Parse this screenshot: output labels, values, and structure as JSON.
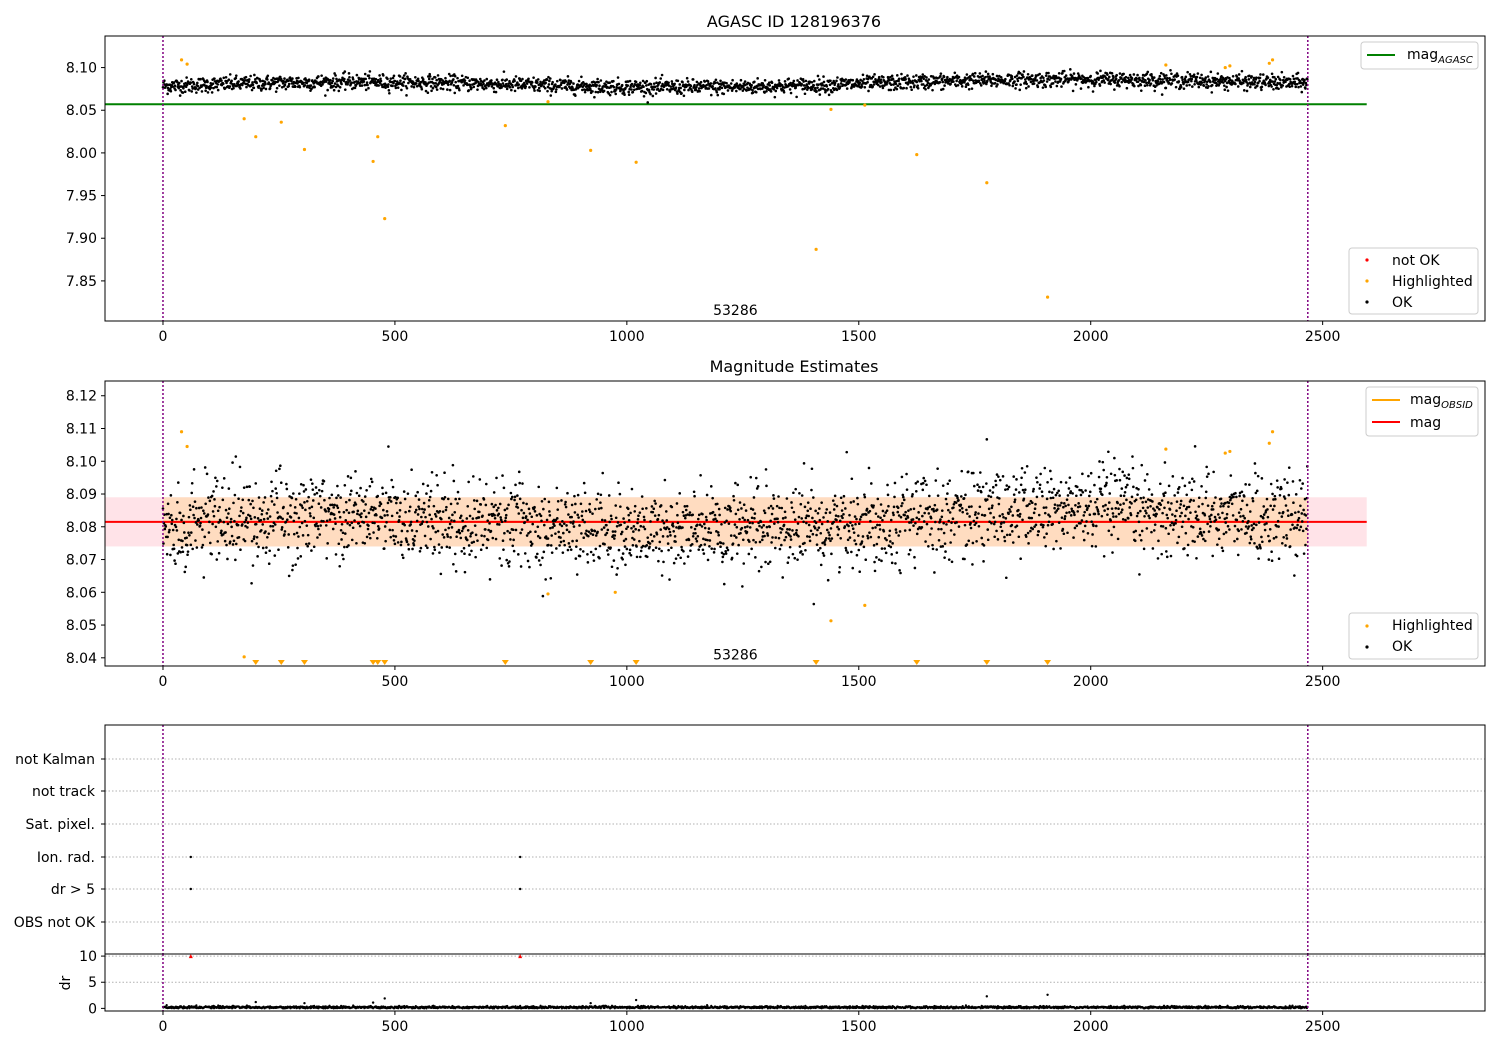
{
  "chart_data": [
    {
      "type": "scatter",
      "title": "AGASC ID 128196376",
      "xlim": [
        -125,
        2850
      ],
      "ylim": [
        7.803,
        8.137
      ],
      "xticks": [
        0,
        500,
        1000,
        1500,
        2000,
        2500
      ],
      "yticks": [
        7.85,
        7.9,
        7.95,
        8.0,
        8.05,
        8.1
      ],
      "ytick_labels": [
        "7.85",
        "7.90",
        "7.95",
        "8.00",
        "8.05",
        "8.10"
      ],
      "vlines": [
        0,
        2468
      ],
      "annotation": {
        "text": "53286",
        "x": 1234,
        "y": 7.81
      },
      "mag_agasc": {
        "label": "mag_AGASC",
        "label_main": "mag",
        "label_sub": "AGASC",
        "value": 8.057,
        "x_range": [
          -125,
          2595
        ],
        "color": "#008000"
      },
      "ok_trend": {
        "n": 2468,
        "base": 8.081,
        "amplitude": 0.006
      },
      "highlighted_points": [
        {
          "x": 40,
          "y": 8.109
        },
        {
          "x": 52,
          "y": 8.104
        },
        {
          "x": 175,
          "y": 8.04
        },
        {
          "x": 200,
          "y": 8.019
        },
        {
          "x": 255,
          "y": 8.036
        },
        {
          "x": 305,
          "y": 8.004
        },
        {
          "x": 453,
          "y": 7.99
        },
        {
          "x": 463,
          "y": 8.019
        },
        {
          "x": 478,
          "y": 7.923
        },
        {
          "x": 738,
          "y": 8.032
        },
        {
          "x": 830,
          "y": 8.06
        },
        {
          "x": 922,
          "y": 8.003
        },
        {
          "x": 1020,
          "y": 7.989
        },
        {
          "x": 1408,
          "y": 7.887
        },
        {
          "x": 1440,
          "y": 8.051
        },
        {
          "x": 1513,
          "y": 8.056
        },
        {
          "x": 1625,
          "y": 7.998
        },
        {
          "x": 1776,
          "y": 7.965
        },
        {
          "x": 1907,
          "y": 7.831
        },
        {
          "x": 2162,
          "y": 8.103
        },
        {
          "x": 2290,
          "y": 8.1
        },
        {
          "x": 2300,
          "y": 8.102
        },
        {
          "x": 2385,
          "y": 8.105
        },
        {
          "x": 2392,
          "y": 8.109
        }
      ],
      "legend": {
        "position": "lower right",
        "entries": [
          "not OK",
          "Highlighted",
          "OK"
        ]
      }
    },
    {
      "type": "scatter",
      "title": "Magnitude Estimates",
      "xlim": [
        -125,
        2850
      ],
      "ylim": [
        8.0375,
        8.1245
      ],
      "xticks": [
        0,
        500,
        1000,
        1500,
        2000,
        2500
      ],
      "yticks": [
        8.04,
        8.05,
        8.06,
        8.07,
        8.08,
        8.09,
        8.1,
        8.11,
        8.12
      ],
      "ytick_labels": [
        "8.04",
        "8.05",
        "8.06",
        "8.07",
        "8.08",
        "8.09",
        "8.10",
        "8.11",
        "8.12"
      ],
      "vlines": [
        0,
        2468
      ],
      "annotation": {
        "text": "53286",
        "x": 1234,
        "y": 8.0395
      },
      "mag": {
        "label": "mag",
        "value": 8.0815,
        "band": [
          8.074,
          8.089
        ],
        "x_range": [
          -125,
          2595
        ],
        "color": "#ff0000"
      },
      "mag_obsid": {
        "label": "mag_OBSID",
        "label_main": "mag",
        "label_sub": "OBSID",
        "color": "#ffa500",
        "band": [
          8.074,
          8.089
        ],
        "x_range": [
          0,
          2468
        ]
      },
      "ok_trend": {
        "n": 2468,
        "base": 8.0815,
        "amplitude": 0.0045,
        "scatter": 0.0065
      },
      "highlighted_points": [
        {
          "x": 40,
          "y": 8.109
        },
        {
          "x": 52,
          "y": 8.1045
        },
        {
          "x": 175,
          "y": 8.0403
        },
        {
          "x": 830,
          "y": 8.0595
        },
        {
          "x": 975,
          "y": 8.06
        },
        {
          "x": 1440,
          "y": 8.0513
        },
        {
          "x": 1513,
          "y": 8.056
        },
        {
          "x": 2162,
          "y": 8.1037
        },
        {
          "x": 2290,
          "y": 8.1025
        },
        {
          "x": 2300,
          "y": 8.103
        },
        {
          "x": 2385,
          "y": 8.1055
        },
        {
          "x": 2392,
          "y": 8.109
        }
      ],
      "clipped_below": [
        200,
        255,
        305,
        453,
        463,
        478,
        738,
        922,
        1020,
        1408,
        1625,
        1776,
        1907
      ],
      "legend": {
        "position": "lower right",
        "entries": [
          "Highlighted",
          "OK"
        ]
      }
    },
    {
      "type": "scatter",
      "xlim": [
        -125,
        2850
      ],
      "xticks": [
        0,
        500,
        1000,
        1500,
        2000,
        2500
      ],
      "vlines": [
        0,
        2468
      ],
      "flag_rows": [
        "not Kalman",
        "not track",
        "Sat. pixel.",
        "Ion. rad.",
        "dr > 5",
        "OBS not OK"
      ],
      "flag_points": [
        {
          "row": "Ion. rad.",
          "x": 60
        },
        {
          "row": "Ion. rad.",
          "x": 770
        },
        {
          "row": "dr > 5",
          "x": 60
        },
        {
          "row": "dr > 5",
          "x": 770
        }
      ]
    },
    {
      "type": "scatter",
      "xlim": [
        -125,
        2850
      ],
      "ylim": [
        -0.5,
        10.4
      ],
      "ylabel": "dr",
      "xticks": [
        0,
        500,
        1000,
        1500,
        2000,
        2500
      ],
      "yticks": [
        0,
        5,
        10
      ],
      "ytick_labels": [
        "0",
        "5",
        "10"
      ],
      "vlines": [
        0,
        2468
      ],
      "ok_trend": {
        "n": 2468,
        "base": 0.2,
        "amplitude": 0.12
      },
      "outliers": [
        {
          "x": 200,
          "y": 1.2
        },
        {
          "x": 305,
          "y": 1.0
        },
        {
          "x": 453,
          "y": 1.1
        },
        {
          "x": 478,
          "y": 1.9
        },
        {
          "x": 922,
          "y": 1.0
        },
        {
          "x": 1020,
          "y": 1.6
        },
        {
          "x": 1776,
          "y": 2.3
        },
        {
          "x": 1907,
          "y": 2.6
        }
      ],
      "clipped_above": [
        {
          "x": 60,
          "y": 10
        },
        {
          "x": 770,
          "y": 10
        }
      ]
    }
  ],
  "colors": {
    "ok": "#000000",
    "highlighted": "#ffa500",
    "not_ok": "#ff0000",
    "vline": "#800080",
    "band": "#ffc0cb",
    "band_obsid": "#ffdab9"
  }
}
